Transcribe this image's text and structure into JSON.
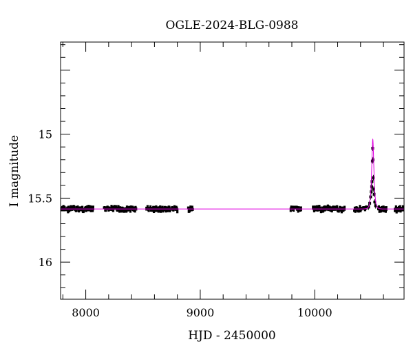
{
  "chart_data": {
    "type": "scatter",
    "title": "OGLE-2024-BLG-0988",
    "xlabel": "HJD - 2450000",
    "ylabel": "I magnitude",
    "xlim": [
      7780,
      10780
    ],
    "ylim": [
      16.29,
      14.28
    ],
    "y_inverted": true,
    "x_ticks": [
      8000,
      9000,
      10000
    ],
    "x_tick_labels": [
      "8000",
      "9000",
      "10000"
    ],
    "y_ticks": [
      15,
      15.5,
      16
    ],
    "y_tick_labels": [
      "15",
      "15.5",
      "16"
    ],
    "baseline_mag": 15.585,
    "model_color": "#e000e0",
    "point_color": "#000000",
    "season_segments": [
      {
        "start": 7790,
        "end": 8065
      },
      {
        "start": 8160,
        "end": 8440
      },
      {
        "start": 8530,
        "end": 8800
      },
      {
        "start": 8895,
        "end": 8935
      },
      {
        "start": 9790,
        "end": 9880
      },
      {
        "start": 9985,
        "end": 10260
      },
      {
        "start": 10345,
        "end": 10450
      },
      {
        "start": 10555,
        "end": 10625
      },
      {
        "start": 10700,
        "end": 10780
      }
    ],
    "event_points": [
      {
        "x": 10470,
        "y": 15.57
      },
      {
        "x": 10480,
        "y": 15.54
      },
      {
        "x": 10488,
        "y": 15.49
      },
      {
        "x": 10493,
        "y": 15.45
      },
      {
        "x": 10497,
        "y": 15.41
      },
      {
        "x": 10500,
        "y": 15.37
      },
      {
        "x": 10503,
        "y": 15.21
      },
      {
        "x": 10506,
        "y": 15.11
      },
      {
        "x": 10509,
        "y": 15.2
      },
      {
        "x": 10512,
        "y": 15.34
      },
      {
        "x": 10515,
        "y": 15.43
      },
      {
        "x": 10519,
        "y": 15.47
      },
      {
        "x": 10524,
        "y": 15.53
      },
      {
        "x": 10532,
        "y": 15.56
      }
    ],
    "model": {
      "t0": 10507,
      "tE": 23,
      "u0": 0.42
    }
  }
}
